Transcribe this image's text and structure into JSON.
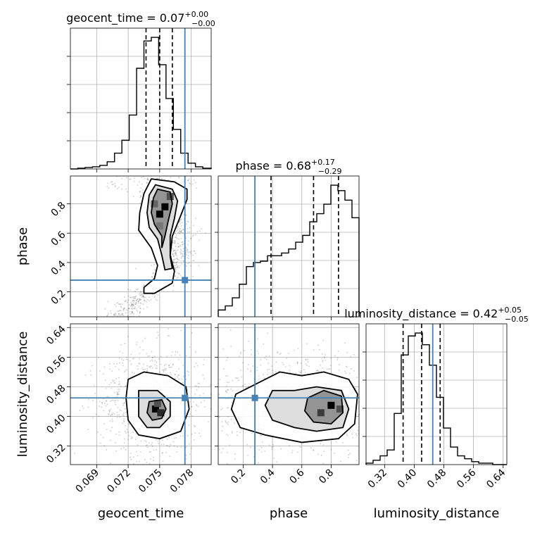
{
  "chart_data": {
    "type": "corner",
    "parameters": [
      {
        "name": "geocent_time",
        "axis_label": "geocent_time",
        "title": {
          "prefix": "geocent_time = 0.07",
          "plus": "+0.00",
          "minus": "−0.00"
        },
        "range": [
          0.0665,
          0.0799
        ],
        "ticks": [
          0.069,
          0.072,
          0.075,
          0.078
        ],
        "tick_labels": [
          "0.069",
          "0.072",
          "0.075",
          "0.078"
        ],
        "quantiles": [
          0.0737,
          0.075,
          0.0762
        ],
        "truth": 0.0774,
        "hist_bins": [
          0.0665,
          0.0672,
          0.0679,
          0.0686,
          0.0693,
          0.07,
          0.0707,
          0.0714,
          0.0721,
          0.0728,
          0.0735,
          0.0742,
          0.0749,
          0.0756,
          0.0763,
          0.077,
          0.0777,
          0.0784,
          0.0791,
          0.0799
        ],
        "hist_counts": [
          0,
          1,
          2,
          3,
          5,
          10,
          22,
          40,
          75,
          140,
          178,
          183,
          145,
          98,
          55,
          22,
          8,
          3,
          1
        ]
      },
      {
        "name": "phase",
        "axis_label": "phase",
        "title": {
          "prefix": "phase = 0.68",
          "plus": "+0.17",
          "minus": "−0.29"
        },
        "range": [
          0.03,
          0.99
        ],
        "ticks": [
          0.2,
          0.4,
          0.6,
          0.8
        ],
        "tick_labels": [
          "0.2",
          "0.4",
          "0.6",
          "0.8"
        ],
        "quantiles": [
          0.39,
          0.68,
          0.85
        ],
        "truth": 0.28,
        "hist_bins": [
          0.03,
          0.078,
          0.126,
          0.174,
          0.222,
          0.27,
          0.318,
          0.366,
          0.414,
          0.462,
          0.51,
          0.558,
          0.606,
          0.654,
          0.702,
          0.75,
          0.798,
          0.846,
          0.894,
          0.942,
          0.99
        ],
        "hist_counts": [
          5,
          8,
          14,
          24,
          37,
          40,
          41,
          45,
          45,
          47,
          50,
          55,
          60,
          70,
          76,
          83,
          97,
          93,
          86,
          73
        ]
      },
      {
        "name": "luminosity_distance",
        "axis_label": "luminosity_distance",
        "title": {
          "prefix": "luminosity_distance = 0.42",
          "plus": "+0.05",
          "minus": "−0.05"
        },
        "range": [
          0.27,
          0.65
        ],
        "ticks": [
          0.32,
          0.4,
          0.48,
          0.56,
          0.64
        ],
        "tick_labels": [
          "0.32",
          "0.40",
          "0.48",
          "0.56",
          "0.64"
        ],
        "quantiles": [
          0.37,
          0.42,
          0.47
        ],
        "truth": 0.45,
        "hist_bins": [
          0.27,
          0.289,
          0.308,
          0.327,
          0.346,
          0.365,
          0.384,
          0.403,
          0.422,
          0.441,
          0.46,
          0.479,
          0.498,
          0.517,
          0.536,
          0.555,
          0.574,
          0.593,
          0.612,
          0.631,
          0.65
        ],
        "hist_counts": [
          1,
          3,
          6,
          10,
          35,
          75,
          88,
          90,
          82,
          68,
          46,
          25,
          12,
          6,
          4,
          2,
          1,
          1,
          0,
          0
        ]
      }
    ],
    "panels_2d": [
      {
        "x": "geocent_time",
        "y": "phase",
        "contours": [
          [
            [
              0.0742,
              0.97
            ],
            [
              0.0764,
              0.95
            ],
            [
              0.0776,
              0.9
            ],
            [
              0.0776,
              0.83
            ],
            [
              0.077,
              0.72
            ],
            [
              0.0762,
              0.58
            ],
            [
              0.076,
              0.45
            ],
            [
              0.0764,
              0.34
            ],
            [
              0.0762,
              0.26
            ],
            [
              0.0745,
              0.19
            ],
            [
              0.0735,
              0.19
            ],
            [
              0.0735,
              0.23
            ],
            [
              0.0745,
              0.29
            ],
            [
              0.0748,
              0.38
            ],
            [
              0.0742,
              0.5
            ],
            [
              0.073,
              0.62
            ],
            [
              0.0731,
              0.74
            ],
            [
              0.0735,
              0.87
            ],
            [
              0.0742,
              0.97
            ]
          ],
          [
            [
              0.0746,
              0.93
            ],
            [
              0.0762,
              0.9
            ],
            [
              0.0767,
              0.82
            ],
            [
              0.0764,
              0.7
            ],
            [
              0.076,
              0.58
            ],
            [
              0.076,
              0.44
            ],
            [
              0.0762,
              0.36
            ],
            [
              0.0755,
              0.35
            ],
            [
              0.0752,
              0.45
            ],
            [
              0.0748,
              0.56
            ],
            [
              0.074,
              0.64
            ],
            [
              0.0738,
              0.74
            ],
            [
              0.074,
              0.86
            ],
            [
              0.0746,
              0.93
            ]
          ],
          [
            [
              0.0748,
              0.9
            ],
            [
              0.076,
              0.88
            ],
            [
              0.0762,
              0.8
            ],
            [
              0.0758,
              0.68
            ],
            [
              0.0755,
              0.58
            ],
            [
              0.0752,
              0.5
            ],
            [
              0.0752,
              0.58
            ],
            [
              0.0745,
              0.66
            ],
            [
              0.0742,
              0.74
            ],
            [
              0.0744,
              0.84
            ],
            [
              0.0748,
              0.9
            ]
          ]
        ],
        "density_cells": [
          {
            "x": 0.075,
            "y": 0.73,
            "level": 1.0
          },
          {
            "x": 0.0755,
            "y": 0.78,
            "level": 1.0
          },
          {
            "x": 0.076,
            "y": 0.85,
            "level": 0.6
          },
          {
            "x": 0.0745,
            "y": 0.8,
            "level": 0.5
          },
          {
            "x": 0.075,
            "y": 0.65,
            "level": 0.4
          }
        ],
        "truth": [
          0.0774,
          0.28
        ]
      },
      {
        "x": "geocent_time",
        "y": "luminosity_distance",
        "contours": [
          [
            [
              0.072,
              0.5
            ],
            [
              0.0735,
              0.52
            ],
            [
              0.0758,
              0.51
            ],
            [
              0.0775,
              0.48
            ],
            [
              0.0778,
              0.42
            ],
            [
              0.077,
              0.36
            ],
            [
              0.075,
              0.34
            ],
            [
              0.073,
              0.35
            ],
            [
              0.072,
              0.39
            ],
            [
              0.0718,
              0.45
            ],
            [
              0.072,
              0.5
            ]
          ],
          [
            [
              0.073,
              0.47
            ],
            [
              0.0748,
              0.47
            ],
            [
              0.076,
              0.44
            ],
            [
              0.076,
              0.4
            ],
            [
              0.075,
              0.37
            ],
            [
              0.0738,
              0.37
            ],
            [
              0.073,
              0.4
            ],
            [
              0.073,
              0.47
            ]
          ],
          [
            [
              0.074,
              0.44
            ],
            [
              0.0752,
              0.445
            ],
            [
              0.0756,
              0.42
            ],
            [
              0.0752,
              0.395
            ],
            [
              0.0743,
              0.39
            ],
            [
              0.0738,
              0.41
            ],
            [
              0.074,
              0.44
            ]
          ]
        ],
        "density_cells": [
          {
            "x": 0.0746,
            "y": 0.42,
            "level": 1.0
          },
          {
            "x": 0.0751,
            "y": 0.41,
            "level": 0.8
          },
          {
            "x": 0.0748,
            "y": 0.435,
            "level": 0.6
          }
        ],
        "truth": [
          0.0774,
          0.45
        ]
      },
      {
        "x": "phase",
        "y": "luminosity_distance",
        "contours": [
          [
            [
              0.15,
              0.46
            ],
            [
              0.3,
              0.49
            ],
            [
              0.45,
              0.52
            ],
            [
              0.6,
              0.51
            ],
            [
              0.75,
              0.52
            ],
            [
              0.92,
              0.5
            ],
            [
              0.98,
              0.46
            ],
            [
              0.96,
              0.38
            ],
            [
              0.85,
              0.34
            ],
            [
              0.6,
              0.33
            ],
            [
              0.35,
              0.35
            ],
            [
              0.18,
              0.37
            ],
            [
              0.12,
              0.42
            ],
            [
              0.15,
              0.46
            ]
          ],
          [
            [
              0.4,
              0.47
            ],
            [
              0.55,
              0.47
            ],
            [
              0.7,
              0.48
            ],
            [
              0.87,
              0.47
            ],
            [
              0.92,
              0.42
            ],
            [
              0.88,
              0.37
            ],
            [
              0.7,
              0.36
            ],
            [
              0.55,
              0.37
            ],
            [
              0.4,
              0.39
            ],
            [
              0.35,
              0.43
            ],
            [
              0.4,
              0.47
            ]
          ],
          [
            [
              0.64,
              0.45
            ],
            [
              0.75,
              0.47
            ],
            [
              0.87,
              0.455
            ],
            [
              0.88,
              0.41
            ],
            [
              0.8,
              0.38
            ],
            [
              0.68,
              0.385
            ],
            [
              0.62,
              0.415
            ],
            [
              0.64,
              0.45
            ]
          ]
        ],
        "density_cells": [
          {
            "x": 0.8,
            "y": 0.43,
            "level": 1.0
          },
          {
            "x": 0.73,
            "y": 0.41,
            "level": 0.7
          },
          {
            "x": 0.86,
            "y": 0.42,
            "level": 0.6
          }
        ],
        "truth": [
          0.28,
          0.45
        ]
      }
    ]
  }
}
